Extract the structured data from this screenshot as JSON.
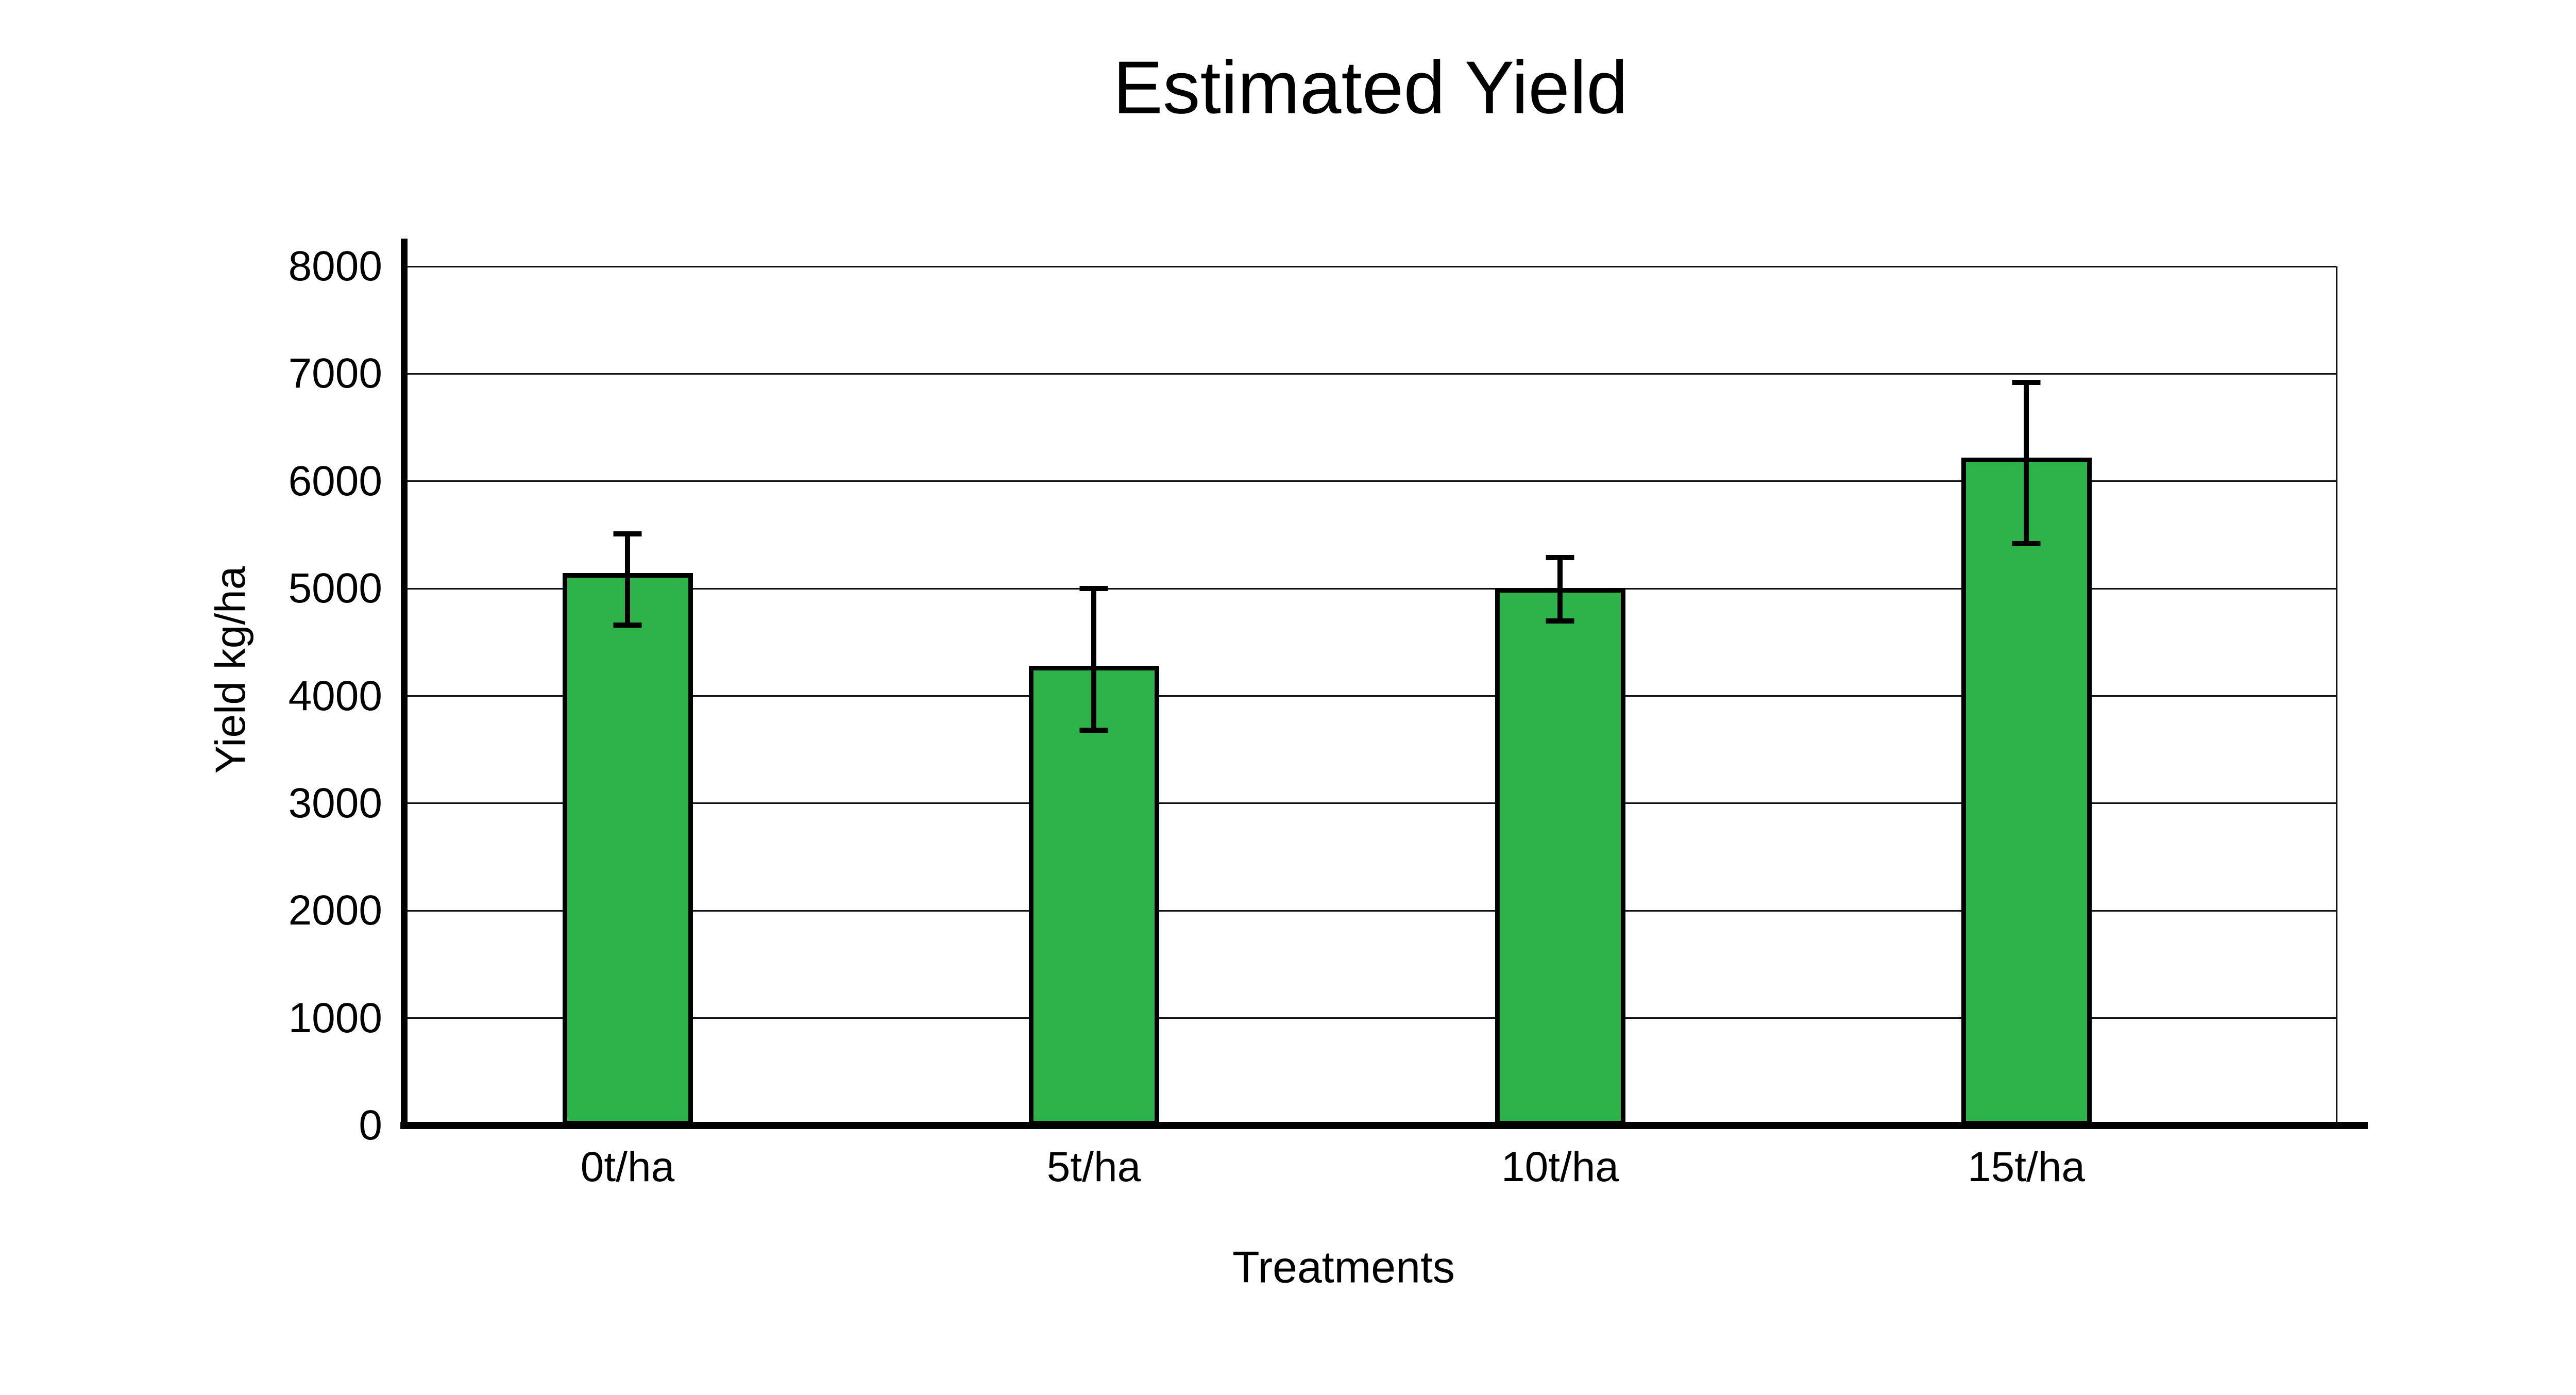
{
  "title": "Estimated Yield",
  "y_axis": {
    "label": "Yield kg/ha",
    "ticks": [
      8000,
      7000,
      6000,
      5000,
      4000,
      3000,
      2000,
      1000,
      0
    ]
  },
  "x_axis": {
    "label": "Treatments",
    "categories": [
      "0t/ha",
      "5t/ha",
      "10t/ha",
      "15t/ha"
    ]
  },
  "chart_data": {
    "type": "bar",
    "title": "Estimated Yield",
    "categories": [
      "0t/ha",
      "5t/ha",
      "10t/ha",
      "15t/ha"
    ],
    "values": [
      5145,
      4280,
      5005,
      6220
    ],
    "error_bars": {
      "upper": [
        5510,
        5000,
        5290,
        6920
      ],
      "lower": [
        4660,
        3680,
        4700,
        5420
      ]
    },
    "xlabel": "Treatments",
    "ylabel": "Yield kg/ha",
    "ylim": [
      0,
      8000
    ],
    "ytick_step": 1000,
    "grid": "horizontal-major",
    "legend": "none",
    "bar_color": "#2eb34a",
    "bar_border_color": "#000000",
    "error_bar_color": "#000000",
    "background": "#ffffff"
  }
}
